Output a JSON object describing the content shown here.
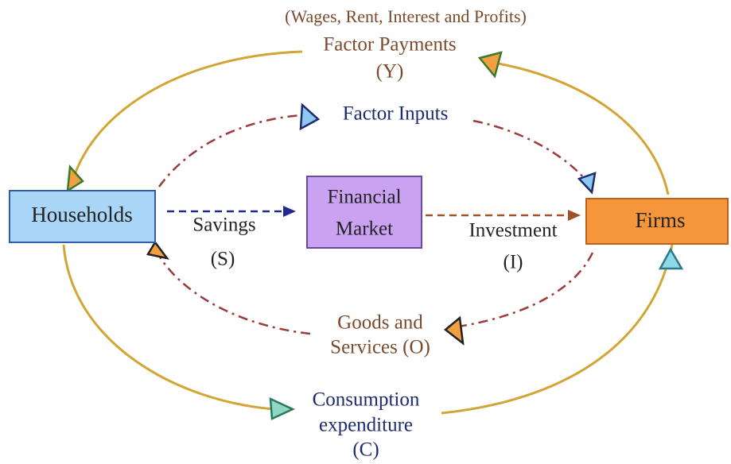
{
  "nodes": {
    "households": "Households",
    "financial_market": [
      "Financial",
      "Market"
    ],
    "firms": "Firms"
  },
  "flows": {
    "factor_payments": [
      "(Wages, Rent, Interest and Profits)",
      "Factor Payments",
      "(Y)"
    ],
    "factor_inputs": [
      "Factor Inputs"
    ],
    "savings": [
      "Savings",
      "(S)"
    ],
    "investment": [
      "Investment",
      "(I)"
    ],
    "goods_and_services": [
      "Goods and",
      "Services (O)"
    ],
    "consumption_expenditure": [
      "Consumption",
      "expenditure",
      "(C)"
    ]
  }
}
